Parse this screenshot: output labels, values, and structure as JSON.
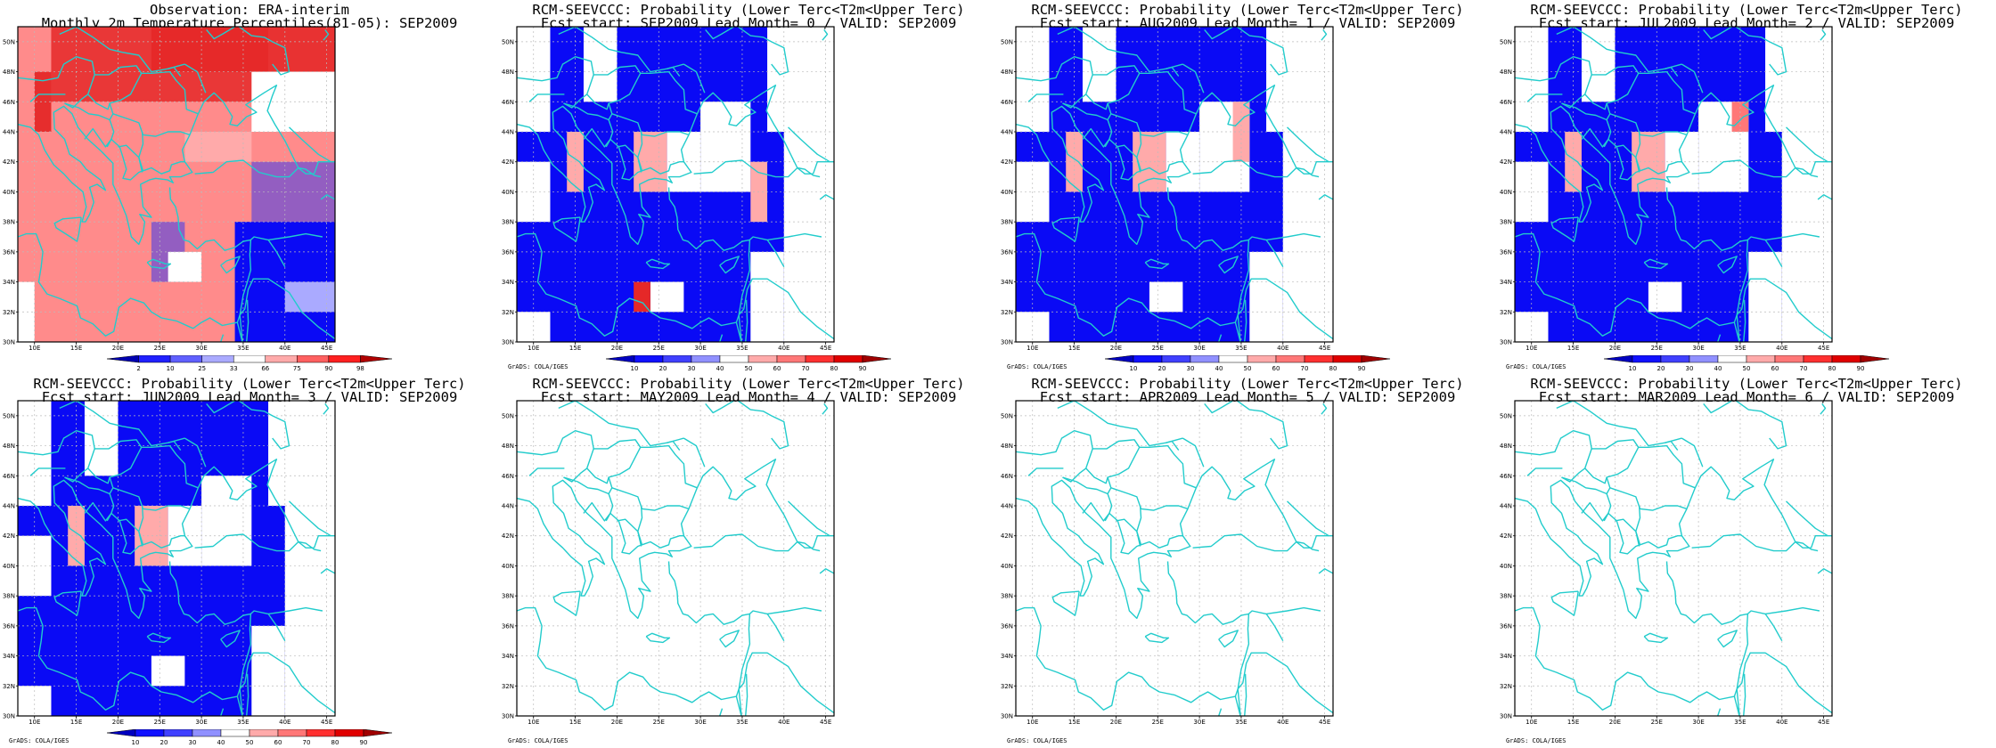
{
  "panels": [
    {
      "title1": "Observation: ERA-interim",
      "title2": "Monthly 2m Temperature Percentiles(81-05): SEP2009",
      "type": "percentile",
      "colorbar_labels": [
        "2",
        "10",
        "25",
        "33",
        "66",
        "75",
        "90",
        "98"
      ],
      "credit": ""
    },
    {
      "title1": "RCM-SEEVCCC: Probability (Lower Terc<T2m<Upper Terc)",
      "title2": "Fcst start: SEP2009  Lead Month= 0 / VALID: SEP2009",
      "type": "probability",
      "colorbar_labels": [
        "10",
        "20",
        "30",
        "40",
        "50",
        "60",
        "70",
        "80",
        "90"
      ],
      "credit": "GrADS: COLA/IGES"
    },
    {
      "title1": "RCM-SEEVCCC: Probability (Lower Terc<T2m<Upper Terc)",
      "title2": "Fcst start: AUG2009  Lead Month= 1 / VALID: SEP2009",
      "type": "probability",
      "colorbar_labels": [
        "10",
        "20",
        "30",
        "40",
        "50",
        "60",
        "70",
        "80",
        "90"
      ],
      "credit": "GrADS: COLA/IGES"
    },
    {
      "title1": "RCM-SEEVCCC: Probability (Lower Terc<T2m<Upper Terc)",
      "title2": "Fcst start: JUL2009  Lead Month= 2 / VALID: SEP2009",
      "type": "probability",
      "colorbar_labels": [
        "10",
        "20",
        "30",
        "40",
        "50",
        "60",
        "70",
        "80",
        "90"
      ],
      "credit": "GrADS: COLA/IGES"
    },
    {
      "title1": "RCM-SEEVCCC: Probability (Lower Terc<T2m<Upper Terc)",
      "title2": "Fcst start: JUN2009  Lead Month= 3 / VALID: SEP2009",
      "type": "probability",
      "colorbar_labels": [
        "10",
        "20",
        "30",
        "40",
        "50",
        "60",
        "70",
        "80",
        "90"
      ],
      "credit": "GrADS: COLA/IGES"
    },
    {
      "title1": "RCM-SEEVCCC: Probability (Lower Terc<T2m<Upper Terc)",
      "title2": "Fcst start: MAY2009  Lead Month= 4 / VALID: SEP2009",
      "type": "empty",
      "colorbar_labels": [],
      "credit": "GrADS: COLA/IGES"
    },
    {
      "title1": "RCM-SEEVCCC: Probability (Lower Terc<T2m<Upper Terc)",
      "title2": "Fcst start: APR2009  Lead Month= 5 / VALID: SEP2009",
      "type": "empty",
      "colorbar_labels": [],
      "credit": "GrADS: COLA/IGES"
    },
    {
      "title1": "RCM-SEEVCCC: Probability (Lower Terc<T2m<Upper Terc)",
      "title2": "Fcst start: MAR2009  Lead Month= 6 / VALID: SEP2009",
      "type": "empty",
      "colorbar_labels": [],
      "credit": "GrADS: COLA/IGES"
    }
  ],
  "map": {
    "lon_labels": [
      "10E",
      "15E",
      "20E",
      "25E",
      "30E",
      "35E",
      "40E",
      "45E"
    ],
    "lat_labels": [
      "30N",
      "32N",
      "34N",
      "36N",
      "38N",
      "40N",
      "42N",
      "44N",
      "46N",
      "48N",
      "50N"
    ],
    "lon_range": [
      8,
      46
    ],
    "lat_range": [
      30,
      51
    ]
  },
  "colors": {
    "coast": "#22cccc",
    "grid": "#bbbbbb",
    "blue": "#0a0af5",
    "light_blue": "#3a3aee",
    "pale_blue": "#aaaaff",
    "red": "#e52828",
    "pink": "#ffaaaa",
    "salmon": "#ff7777"
  }
}
